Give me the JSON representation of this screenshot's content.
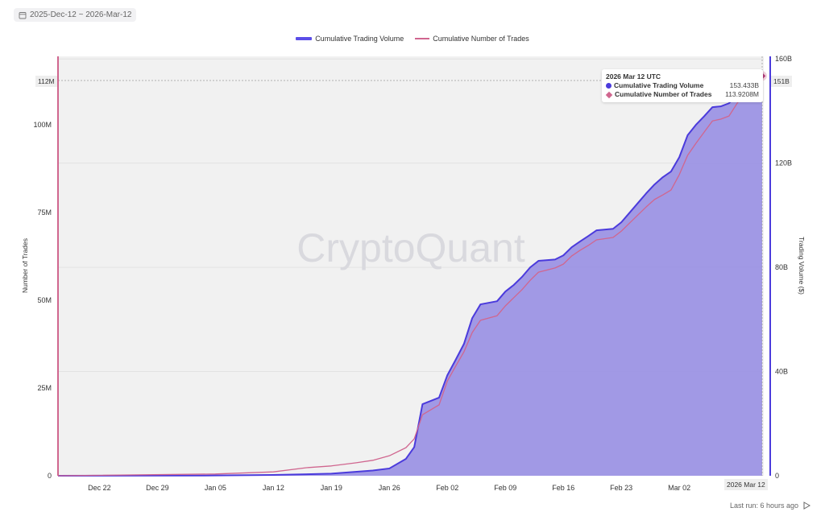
{
  "date_range": {
    "icon": "calendar-icon",
    "label": "2025-Dec-12 ~ 2026-Mar-12"
  },
  "footer": {
    "last_run": "Last run: 6 hours ago",
    "icon": "play-icon"
  },
  "watermark": "CryptoQuant",
  "tooltip": {
    "title": "2026 Mar 12 UTC",
    "rows": [
      {
        "label": "Cumulative Trading Volume",
        "value": "153.433B"
      },
      {
        "label": "Cumulative Number of Trades",
        "value": "113.9208M"
      }
    ]
  },
  "crosshair": {
    "left_label": "112M",
    "right_label": "151B",
    "x_label": "2026 Mar 12"
  },
  "chart_data": {
    "type": "line",
    "title": "",
    "legend": [
      "Cumulative Trading Volume",
      "Cumulative Number of Trades"
    ],
    "legend_position": "top",
    "ylabel_left": "Number of Trades",
    "ylabel_right": "Trading Volume ($)",
    "ylim_left": [
      0,
      119.5
    ],
    "ylim_right": [
      0,
      161
    ],
    "yticks_left": [
      "0",
      "25M",
      "50M",
      "75M",
      "100M"
    ],
    "yticks_left_values": [
      0,
      25,
      50,
      75,
      100
    ],
    "yticks_right": [
      "0",
      "40B",
      "80B",
      "120B",
      "160B"
    ],
    "yticks_right_values": [
      0,
      40,
      80,
      120,
      160
    ],
    "xticks": [
      "Dec 22",
      "Dec 29",
      "Jan 05",
      "Jan 12",
      "Jan 19",
      "Jan 26",
      "Feb 02",
      "Feb 09",
      "Feb 16",
      "Feb 23",
      "Mar 02"
    ],
    "xticks_dates": [
      "2025-12-22",
      "2025-12-29",
      "2026-01-05",
      "2026-01-12",
      "2026-01-19",
      "2026-01-26",
      "2026-02-02",
      "2026-02-09",
      "2026-02-16",
      "2026-02-23",
      "2026-03-02"
    ],
    "xlim": [
      "2025-12-17",
      "2026-03-12"
    ],
    "colors": {
      "volume": "#4b3bdc",
      "volume_fill": "#9c94e4",
      "trades": "#d0668f"
    },
    "series": [
      {
        "name": "Cumulative Trading Volume",
        "unit": "B",
        "axis": "right",
        "dates": [
          "2025-12-17",
          "2026-01-05",
          "2026-01-12",
          "2026-01-19",
          "2026-01-24",
          "2026-01-26",
          "2026-01-28",
          "2026-01-29",
          "2026-01-30",
          "2026-02-01",
          "2026-02-02",
          "2026-02-03",
          "2026-02-04",
          "2026-02-05",
          "2026-02-06",
          "2026-02-08",
          "2026-02-09",
          "2026-02-10",
          "2026-02-11",
          "2026-02-12",
          "2026-02-13",
          "2026-02-15",
          "2026-02-16",
          "2026-02-17",
          "2026-02-18",
          "2026-02-19",
          "2026-02-20",
          "2026-02-22",
          "2026-02-23",
          "2026-02-24",
          "2026-02-25",
          "2026-02-26",
          "2026-02-27",
          "2026-02-28",
          "2026-03-01",
          "2026-03-02",
          "2026-03-03",
          "2026-03-04",
          "2026-03-05",
          "2026-03-06",
          "2026-03-07",
          "2026-03-08",
          "2026-03-09",
          "2026-03-10",
          "2026-03-11",
          "2026-03-12"
        ],
        "values": [
          0,
          0.1,
          0.3,
          0.8,
          2.0,
          2.8,
          6.5,
          11,
          27.5,
          30,
          38.6,
          44.5,
          50.6,
          60.5,
          65.8,
          67,
          70.7,
          73.2,
          76.3,
          80,
          82.5,
          83,
          84.6,
          87.7,
          89.9,
          92,
          94.2,
          94.8,
          97.3,
          101,
          104.7,
          108.4,
          111.8,
          114.6,
          116.8,
          122.3,
          130.7,
          134.7,
          138,
          141.5,
          141.8,
          143,
          146.4,
          149.2,
          151.7,
          153.433
        ]
      },
      {
        "name": "Cumulative Number of Trades",
        "unit": "M",
        "axis": "left",
        "dates": [
          "2025-12-17",
          "2026-01-05",
          "2026-01-12",
          "2026-01-16",
          "2026-01-19",
          "2026-01-22",
          "2026-01-24",
          "2026-01-26",
          "2026-01-28",
          "2026-01-29",
          "2026-01-30",
          "2026-02-01",
          "2026-02-02",
          "2026-02-03",
          "2026-02-04",
          "2026-02-05",
          "2026-02-06",
          "2026-02-08",
          "2026-02-09",
          "2026-02-10",
          "2026-02-11",
          "2026-02-12",
          "2026-02-13",
          "2026-02-15",
          "2026-02-16",
          "2026-02-17",
          "2026-02-18",
          "2026-02-19",
          "2026-02-20",
          "2026-02-22",
          "2026-02-23",
          "2026-02-24",
          "2026-02-25",
          "2026-02-26",
          "2026-02-27",
          "2026-02-28",
          "2026-03-01",
          "2026-03-02",
          "2026-03-03",
          "2026-03-04",
          "2026-03-05",
          "2026-03-06",
          "2026-03-07",
          "2026-03-08",
          "2026-03-09",
          "2026-03-10",
          "2026-03-11",
          "2026-03-12"
        ],
        "values": [
          0,
          0.5,
          1.1,
          2.3,
          2.8,
          3.7,
          4.4,
          5.7,
          8,
          10.5,
          17.4,
          20.2,
          27,
          31.2,
          35.3,
          40.8,
          44.3,
          45.6,
          48.4,
          50.7,
          53,
          55.7,
          58,
          59.2,
          60.3,
          62.6,
          64.2,
          65.6,
          67.2,
          67.9,
          69.7,
          72,
          74.3,
          76.6,
          78.7,
          80,
          81.4,
          85.8,
          91.3,
          94.7,
          97.9,
          101.1,
          101.6,
          102.5,
          106.2,
          109.2,
          112,
          113.9208
        ]
      }
    ]
  }
}
